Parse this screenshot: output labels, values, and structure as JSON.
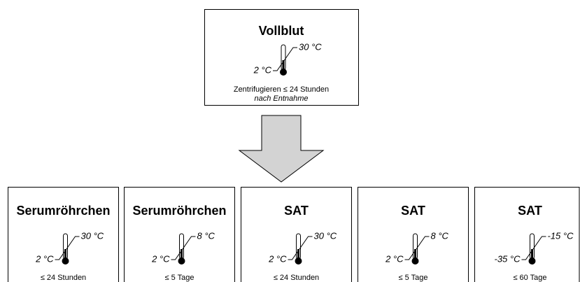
{
  "top": {
    "title": "Vollblut",
    "max": "30 °C",
    "min": "2 °C",
    "note": "Zentrifugieren ≤ 24 Stunden",
    "note_italic": "nach Entnahme"
  },
  "boxes": [
    {
      "title": "Serumröhrchen",
      "max": "30 °C",
      "min": "2 °C",
      "duration": "≤ 24 Stunden"
    },
    {
      "title": "Serumröhrchen",
      "max": "8 °C",
      "min": "2 °C",
      "duration": "≤ 5 Tage"
    },
    {
      "title": "SAT",
      "max": "30 °C",
      "min": "2 °C",
      "duration": "≤ 24 Stunden"
    },
    {
      "title": "SAT",
      "max": "8 °C",
      "min": "2 °C",
      "duration": "≤ 5 Tage"
    },
    {
      "title": "SAT",
      "max": "-15 °C",
      "min": "-35 °C",
      "duration": "≤ 60 Tage"
    }
  ]
}
